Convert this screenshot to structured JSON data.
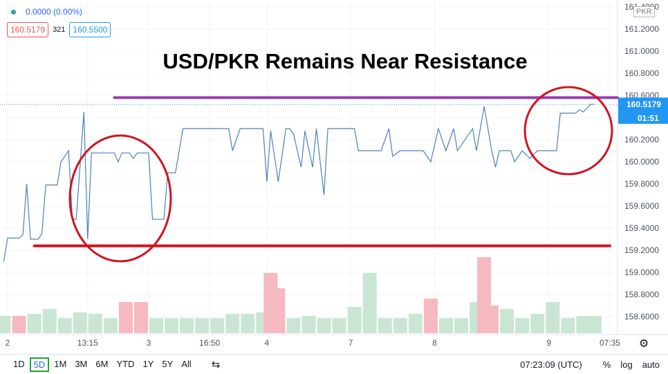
{
  "chart_data": {
    "type": "line",
    "title": "USD/PKR Remains Near Resistance",
    "currency": "PKR",
    "header": {
      "change": "0.0000 (0.00%)",
      "bid": "160.5179",
      "spread": "321",
      "ask": "160.5500"
    },
    "x": [
      1,
      2,
      5,
      6,
      7,
      8,
      10,
      11,
      12,
      15,
      16,
      18,
      19,
      20,
      22,
      23,
      24,
      30,
      31,
      32,
      34,
      35,
      36,
      39,
      40,
      43,
      44,
      46,
      48,
      60,
      61,
      63,
      69,
      70,
      71,
      73,
      75,
      76,
      77,
      79,
      80,
      82,
      83,
      85,
      86,
      93,
      94,
      100,
      102,
      103,
      105,
      111,
      113,
      115,
      117,
      119,
      120,
      124,
      125,
      127,
      129,
      130,
      131,
      134,
      135,
      137,
      139,
      141,
      146,
      147,
      151,
      152,
      153,
      155,
      156
    ],
    "series": [
      {
        "name": "USD/PKR",
        "color": "#4a7fc1",
        "values": [
          159.1,
          159.31,
          159.31,
          159.34,
          159.8,
          159.3,
          159.3,
          159.35,
          159.79,
          159.79,
          160.0,
          160.1,
          159.48,
          159.48,
          160.45,
          159.3,
          160.08,
          160.08,
          160.0,
          160.08,
          160.08,
          160.03,
          160.08,
          160.08,
          159.48,
          159.48,
          159.9,
          159.9,
          160.3,
          160.3,
          160.1,
          160.3,
          160.3,
          159.82,
          160.28,
          159.82,
          160.3,
          160.3,
          160.25,
          159.95,
          160.28,
          159.95,
          160.3,
          159.7,
          160.3,
          160.3,
          160.1,
          160.1,
          160.3,
          160.05,
          160.1,
          160.1,
          160.0,
          160.3,
          160.1,
          160.3,
          160.1,
          160.3,
          160.1,
          160.5,
          160.1,
          159.95,
          160.1,
          160.1,
          160.0,
          160.1,
          160.03,
          160.1,
          160.1,
          160.44,
          160.44,
          160.47,
          160.45,
          160.52,
          160.52
        ]
      }
    ],
    "hlines": [
      {
        "value": 160.58,
        "color": "#9c3fb0",
        "from": 30,
        "to": 162
      },
      {
        "value": 159.24,
        "color": "#d4111f",
        "from": 9,
        "to": 160
      }
    ],
    "last_price": {
      "value": 160.5179,
      "label": "160.5179",
      "timer": "01:51",
      "color": "#2196f3"
    },
    "volume": {
      "x": [
        1,
        5,
        9,
        13,
        17,
        21,
        25,
        29,
        33,
        37,
        41,
        45,
        49,
        53,
        57,
        61,
        65,
        69,
        71,
        73,
        77,
        81,
        85,
        89,
        93,
        97,
        101,
        105,
        109,
        113,
        117,
        121,
        125,
        127,
        129,
        133,
        137,
        141,
        145,
        149,
        153,
        156
      ],
      "values": [
        25,
        25,
        28,
        35,
        22,
        30,
        28,
        22,
        45,
        45,
        22,
        22,
        22,
        22,
        22,
        28,
        28,
        30,
        87,
        65,
        22,
        25,
        22,
        22,
        38,
        87,
        22,
        22,
        28,
        50,
        22,
        22,
        45,
        110,
        40,
        35,
        22,
        28,
        45,
        22,
        25,
        25
      ],
      "colors": [
        "#c9e6d4",
        "#f5b9bf",
        "#c9e6d4",
        "#c9e6d4",
        "#c9e6d4",
        "#c9e6d4",
        "#c9e6d4",
        "#c9e6d4",
        "#f5b9bf",
        "#f5b9bf",
        "#c9e6d4",
        "#c9e6d4",
        "#c9e6d4",
        "#c9e6d4",
        "#c9e6d4",
        "#c9e6d4",
        "#c9e6d4",
        "#c9e6d4",
        "#f5b9bf",
        "#f5b9bf",
        "#c9e6d4",
        "#c9e6d4",
        "#c9e6d4",
        "#c9e6d4",
        "#c9e6d4",
        "#c9e6d4",
        "#c9e6d4",
        "#c9e6d4",
        "#c9e6d4",
        "#f5b9bf",
        "#c9e6d4",
        "#c9e6d4",
        "#c9e6d4",
        "#f5b9bf",
        "#f5b9bf",
        "#c9e6d4",
        "#c9e6d4",
        "#c9e6d4",
        "#c9e6d4",
        "#c9e6d4",
        "#c9e6d4",
        "#c9e6d4"
      ],
      "ylim": [
        0,
        140
      ]
    },
    "xlim": [
      0,
      162
    ],
    "ylim": [
      158.45,
      161.4625
    ],
    "yticks": [
      {
        "value": 158.6,
        "label": "158.6000"
      },
      {
        "value": 158.8,
        "label": "158.8000"
      },
      {
        "value": 159.0,
        "label": "159.0000"
      },
      {
        "value": 159.2,
        "label": "159.2000"
      },
      {
        "value": 159.4,
        "label": "159.4000"
      },
      {
        "value": 159.6,
        "label": "159.6000"
      },
      {
        "value": 159.8,
        "label": "159.8000"
      },
      {
        "value": 160.0,
        "label": "160.0000"
      },
      {
        "value": 160.2,
        "label": "160.2000"
      },
      {
        "value": 160.4,
        "label": "160.4000"
      },
      {
        "value": 160.6,
        "label": "160.6000"
      },
      {
        "value": 160.8,
        "label": "160.8000"
      },
      {
        "value": 161.0,
        "label": "161.0000"
      },
      {
        "value": 161.2,
        "label": "161.2000"
      },
      {
        "value": 161.4,
        "label": "161.4000"
      }
    ],
    "xticks": [
      {
        "value": 2,
        "label": "2"
      },
      {
        "value": 23,
        "label": "13:15"
      },
      {
        "value": 39,
        "label": "3"
      },
      {
        "value": 55,
        "label": "16:50"
      },
      {
        "value": 70,
        "label": "4"
      },
      {
        "value": 92,
        "label": "7"
      },
      {
        "value": 114,
        "label": "8"
      },
      {
        "value": 144,
        "label": "9"
      },
      {
        "value": 160,
        "label": "07:35"
      }
    ],
    "grid": true,
    "toolbar": {
      "ranges": [
        "1D",
        "5D",
        "1M",
        "3M",
        "6M",
        "YTD",
        "1Y",
        "5Y",
        "All"
      ],
      "selected": 1,
      "clock": "07:23:09 (UTC)",
      "toggles": [
        "%",
        "log",
        "auto"
      ]
    }
  }
}
